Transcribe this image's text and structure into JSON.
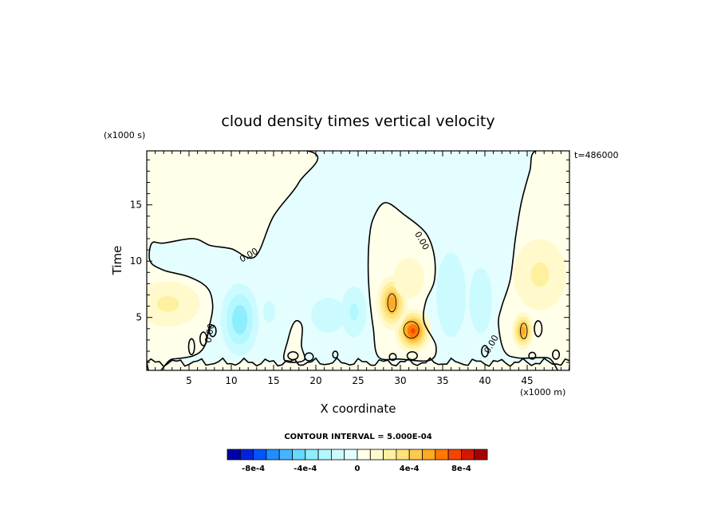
{
  "chart_data": {
    "type": "heatmap",
    "subtype": "filled-contour",
    "title": "cloud density times vertical velocity",
    "xlabel": "X coordinate",
    "ylabel": "Time",
    "x_unit_label": "(x1000 m)",
    "y_unit_label": "(x1000 s)",
    "time_stamp": "t=486000",
    "xlim": [
      0,
      50
    ],
    "ylim": [
      0.3,
      19.8
    ],
    "x_ticks": [
      5,
      10,
      15,
      20,
      25,
      30,
      35,
      40,
      45
    ],
    "x_tick_labels": [
      "5",
      "10",
      "15",
      "20",
      "25",
      "30",
      "35",
      "40",
      "45"
    ],
    "y_ticks": [
      5,
      10,
      15
    ],
    "y_tick_labels": [
      "5",
      "10",
      "15"
    ],
    "contour_interval_text": "CONTOUR INTERVAL = 5.000E-04",
    "zero_contour_label": "0.00",
    "colorbar": {
      "levels": [
        -0.001,
        -0.0009,
        -0.0008,
        -0.0007,
        -0.0006,
        -0.0005,
        -0.0004,
        -0.0003,
        -0.0002,
        -0.0001,
        0,
        0.0001,
        0.0002,
        0.0003,
        0.0004,
        0.0005,
        0.0006,
        0.0007,
        0.0008,
        0.0009,
        0.001
      ],
      "colors": [
        "#0000a8",
        "#0022dd",
        "#0055ff",
        "#1f8fff",
        "#45b5ff",
        "#66d9ff",
        "#8eeeff",
        "#b3f7ff",
        "#ccfbff",
        "#e4feff",
        "#ffffea",
        "#fff9cc",
        "#fff0a0",
        "#ffe27a",
        "#ffc94d",
        "#ffaa22",
        "#ff7a00",
        "#f54500",
        "#d41800",
        "#a80000"
      ],
      "tick_labels": [
        "-8e-4",
        "-4e-4",
        "0",
        "4e-4",
        "8e-4"
      ],
      "tick_values": [
        -0.0008,
        -0.0004,
        0,
        0.0004,
        0.0008
      ]
    },
    "features": [
      {
        "kind": "positive",
        "x": 2.5,
        "y": 6.2,
        "peak": 0.00022,
        "sx": 3.0,
        "sy": 1.6
      },
      {
        "kind": "negative",
        "x": 11.0,
        "y": 4.8,
        "peak": -0.00037,
        "sx": 1.4,
        "sy": 2.0
      },
      {
        "kind": "negative",
        "x": 14.5,
        "y": 5.5,
        "peak": -0.00012,
        "sx": 1.2,
        "sy": 1.6
      },
      {
        "kind": "negative",
        "x": 21.5,
        "y": 5.2,
        "peak": -0.00017,
        "sx": 2.0,
        "sy": 1.5
      },
      {
        "kind": "negative",
        "x": 24.5,
        "y": 5.5,
        "peak": -0.00022,
        "sx": 1.2,
        "sy": 1.8
      },
      {
        "kind": "positive",
        "x": 31.5,
        "y": 3.8,
        "peak": 0.00072,
        "sx": 1.1,
        "sy": 1.0
      },
      {
        "kind": "positive",
        "x": 29.0,
        "y": 6.3,
        "peak": 0.00055,
        "sx": 1.0,
        "sy": 1.3
      },
      {
        "kind": "positive",
        "x": 31.0,
        "y": 8.5,
        "peak": 0.00015,
        "sx": 2.0,
        "sy": 2.0
      },
      {
        "kind": "negative",
        "x": 36.0,
        "y": 7.0,
        "peak": -0.0002,
        "sx": 1.5,
        "sy": 3.2
      },
      {
        "kind": "negative",
        "x": 39.5,
        "y": 6.5,
        "peak": -0.00016,
        "sx": 1.4,
        "sy": 3.0
      },
      {
        "kind": "negative",
        "x": 34.5,
        "y": 2.5,
        "peak": -0.0001,
        "sx": 1.2,
        "sy": 1.0
      },
      {
        "kind": "positive",
        "x": 44.5,
        "y": 3.8,
        "peak": 0.00055,
        "sx": 0.7,
        "sy": 0.9
      },
      {
        "kind": "positive",
        "x": 46.5,
        "y": 8.8,
        "peak": 0.00022,
        "sx": 2.5,
        "sy": 2.5
      },
      {
        "kind": "positive",
        "x": 41.0,
        "y": 1.5,
        "peak": 8e-05,
        "sx": 1.0,
        "sy": 0.6
      }
    ]
  }
}
